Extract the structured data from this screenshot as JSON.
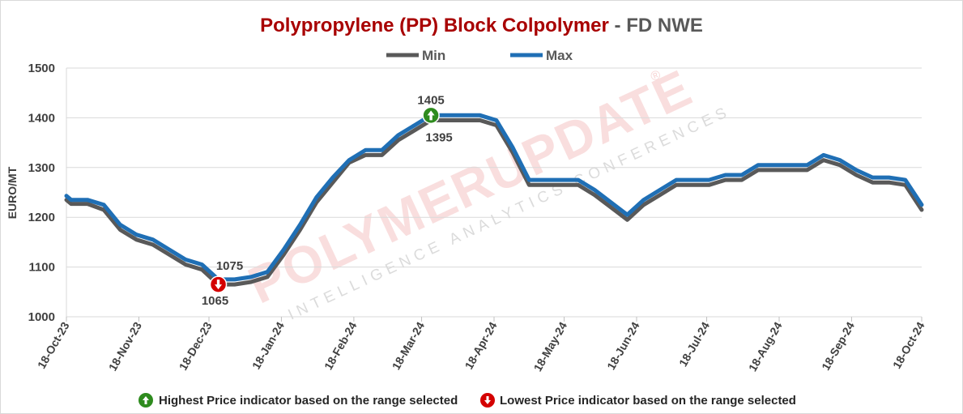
{
  "chart_data": {
    "type": "line",
    "title": "Polypropylene (PP) Block Colpolymer",
    "title_separator": "-",
    "title_suffix": "FD NWE",
    "xlabel": "",
    "ylabel": "EURO/MT",
    "ylim": [
      1000,
      1500
    ],
    "yticks": [
      1000,
      1100,
      1200,
      1300,
      1400,
      1500
    ],
    "grid": "horizontal",
    "legend_position": "top",
    "x_tick_labels": [
      "18-Oct-23",
      "18-Nov-23",
      "18-Dec-23",
      "18-Jan-24",
      "18-Feb-24",
      "18-Mar-24",
      "18-Apr-24",
      "18-May-24",
      "18-Jun-24",
      "18-Jul-24",
      "18-Aug-24",
      "18-Sep-24",
      "18-Oct-24"
    ],
    "x": [
      "2023-10-18",
      "2023-10-20",
      "2023-10-27",
      "2023-11-03",
      "2023-11-10",
      "2023-11-17",
      "2023-11-24",
      "2023-12-01",
      "2023-12-08",
      "2023-12-15",
      "2023-12-22",
      "2023-12-29",
      "2024-01-05",
      "2024-01-12",
      "2024-01-19",
      "2024-01-26",
      "2024-02-02",
      "2024-02-09",
      "2024-02-16",
      "2024-02-23",
      "2024-03-01",
      "2024-03-08",
      "2024-03-15",
      "2024-03-22",
      "2024-03-29",
      "2024-04-05",
      "2024-04-12",
      "2024-04-19",
      "2024-04-26",
      "2024-05-03",
      "2024-05-10",
      "2024-05-17",
      "2024-05-24",
      "2024-05-31",
      "2024-06-07",
      "2024-06-14",
      "2024-06-21",
      "2024-06-28",
      "2024-07-05",
      "2024-07-12",
      "2024-07-19",
      "2024-07-26",
      "2024-08-02",
      "2024-08-09",
      "2024-08-16",
      "2024-08-23",
      "2024-08-30",
      "2024-09-06",
      "2024-09-13",
      "2024-09-20",
      "2024-09-27",
      "2024-10-04",
      "2024-10-11",
      "2024-10-18"
    ],
    "series": [
      {
        "name": "Min",
        "color": "#595959",
        "values": [
          1235,
          1227,
          1227,
          1215,
          1175,
          1155,
          1145,
          1125,
          1105,
          1095,
          1065,
          1065,
          1070,
          1080,
          1125,
          1175,
          1230,
          1270,
          1310,
          1325,
          1325,
          1355,
          1375,
          1395,
          1395,
          1395,
          1395,
          1385,
          1330,
          1265,
          1265,
          1265,
          1265,
          1245,
          1220,
          1195,
          1225,
          1245,
          1265,
          1265,
          1265,
          1275,
          1275,
          1295,
          1295,
          1295,
          1295,
          1315,
          1305,
          1285,
          1270,
          1270,
          1265,
          1215
        ]
      },
      {
        "name": "Max",
        "color": "#1f6fb5",
        "values": [
          1243,
          1235,
          1235,
          1225,
          1185,
          1165,
          1155,
          1135,
          1115,
          1105,
          1075,
          1075,
          1080,
          1090,
          1135,
          1185,
          1240,
          1280,
          1315,
          1335,
          1335,
          1365,
          1385,
          1405,
          1405,
          1405,
          1405,
          1395,
          1340,
          1275,
          1275,
          1275,
          1275,
          1255,
          1230,
          1205,
          1235,
          1255,
          1275,
          1275,
          1275,
          1285,
          1285,
          1305,
          1305,
          1305,
          1305,
          1325,
          1315,
          1295,
          1280,
          1280,
          1275,
          1225
        ]
      }
    ],
    "annotations": [
      {
        "kind": "highest",
        "date": "2024-03-22",
        "label_max": "1405",
        "label_min": "1395",
        "value": 1405
      },
      {
        "kind": "lowest",
        "date": "2023-12-22",
        "label_max": "1075",
        "label_min": "1065",
        "value": 1065
      }
    ]
  },
  "footer": {
    "highest_label": "Highest Price indicator based on the range selected",
    "lowest_label": "Lowest Price indicator based on the range selected",
    "highest_color": "#2e8b1e",
    "lowest_color": "#d40000"
  },
  "watermark": {
    "brand": "POLYMERUPDATE",
    "tagline": "INTELLIGENCE   ANALYTICS   CONFERENCES",
    "registered": "®"
  }
}
